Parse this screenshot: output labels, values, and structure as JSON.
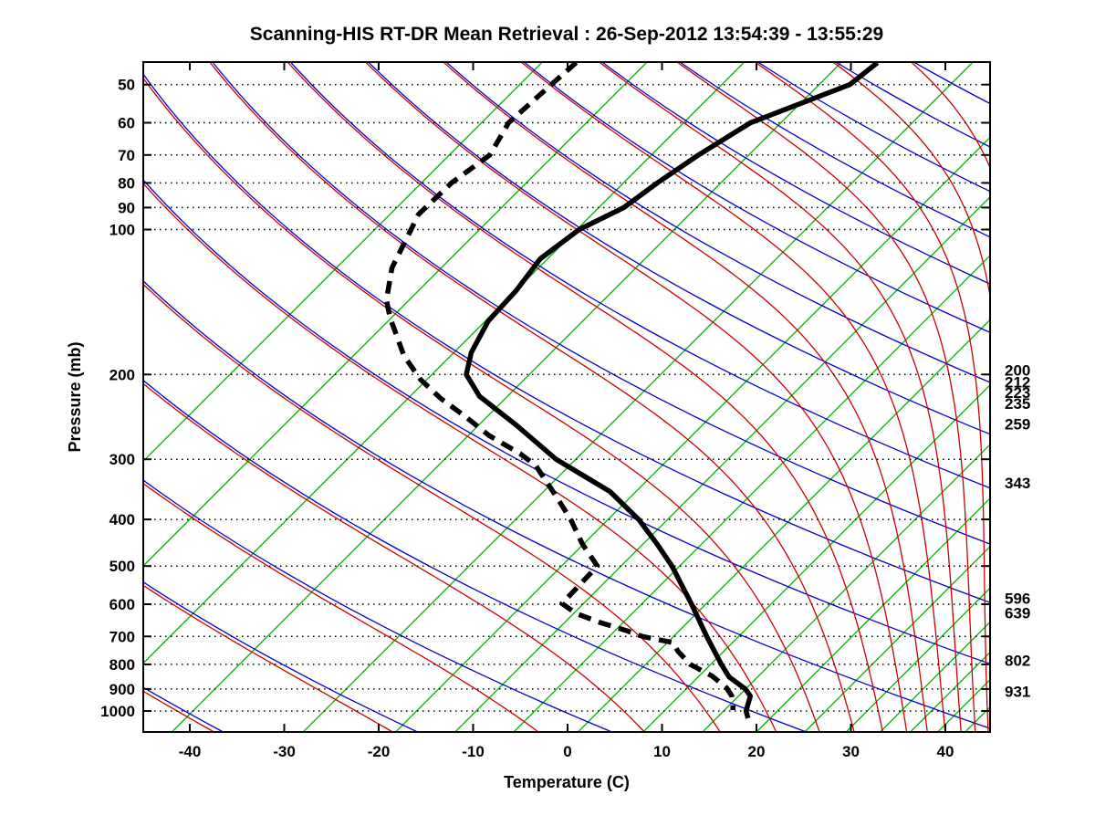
{
  "title": "Scanning-HIS RT-DR Mean Retrieval : 26-Sep-2012 13:54:39 - 13:55:29",
  "axes": {
    "xlabel": "Temperature (C)",
    "ylabel": "Pressure (mb)",
    "x_tick_labels_C": [
      -40,
      -30,
      -20,
      -10,
      0,
      10,
      20,
      30,
      40
    ],
    "x_range_C_at_base": [
      -45,
      45
    ],
    "y_tick_labels_mb": [
      50,
      60,
      70,
      80,
      90,
      100,
      200,
      300,
      400,
      500,
      600,
      700,
      800,
      900,
      1000
    ],
    "pressure_top_mb": 45,
    "pressure_bottom_mb": 1106,
    "scale": "skewed temperature vs log pressure"
  },
  "right_pressure_labels_mb": [
    200,
    212,
    223,
    235,
    259,
    343,
    596,
    639,
    802,
    931
  ],
  "colors": {
    "temperature_curve": "#000000",
    "dewpoint_curve": "#000000",
    "dry_adiabat": "#0000cc",
    "moist_adiabat": "#cc0000",
    "green_isopleth": "#00b400",
    "gridline": "#000000",
    "frame": "#000000",
    "background": "#ffffff"
  },
  "chart_data": {
    "type": "line",
    "title": "Scanning-HIS RT-DR Mean Retrieval : 26-Sep-2012 13:54:39 - 13:55:29",
    "xlabel": "Temperature (C)",
    "ylabel": "Pressure (mb)",
    "x_range_C": [
      -45,
      45
    ],
    "p_range_mb": [
      45,
      1106
    ],
    "grid": "dotted horizontal isobars at labeled pressures",
    "legend_position": "none",
    "series": [
      {
        "name": "temperature",
        "style": "solid bold black",
        "points_p_mb_T_C": [
          [
            45,
            -50.1
          ],
          [
            50,
            -50.3
          ],
          [
            60,
            -56.1
          ],
          [
            70,
            -57.6
          ],
          [
            80,
            -58.5
          ],
          [
            90,
            -59.0
          ],
          [
            100,
            -61.0
          ],
          [
            115,
            -61.5
          ],
          [
            134,
            -60.1
          ],
          [
            155,
            -59.3
          ],
          [
            180,
            -57.2
          ],
          [
            200,
            -55.0
          ],
          [
            222,
            -50.9
          ],
          [
            255,
            -43.4
          ],
          [
            300,
            -35.0
          ],
          [
            350,
            -25.3
          ],
          [
            400,
            -18.8
          ],
          [
            450,
            -13.8
          ],
          [
            500,
            -9.5
          ],
          [
            600,
            -2.7
          ],
          [
            700,
            2.9
          ],
          [
            800,
            7.9
          ],
          [
            850,
            10.3
          ],
          [
            900,
            13.5
          ],
          [
            931,
            14.9
          ],
          [
            970,
            15.7
          ],
          [
            1000,
            16.3
          ],
          [
            1035,
            17.4
          ]
        ]
      },
      {
        "name": "dewpoint",
        "style": "dashed bold black",
        "points_p_mb_T_C": [
          [
            45,
            -82.0
          ],
          [
            50,
            -81.9
          ],
          [
            60,
            -81.7
          ],
          [
            70,
            -79.7
          ],
          [
            80,
            -80.3
          ],
          [
            93,
            -79.9
          ],
          [
            100,
            -78.8
          ],
          [
            120,
            -76.1
          ],
          [
            140,
            -72.7
          ],
          [
            152,
            -70.2
          ],
          [
            183,
            -63.9
          ],
          [
            205,
            -59.2
          ],
          [
            224,
            -54.8
          ],
          [
            245,
            -49.8
          ],
          [
            268,
            -45.0
          ],
          [
            292,
            -39.5
          ],
          [
            309,
            -36.4
          ],
          [
            360,
            -30.2
          ],
          [
            400,
            -26.0
          ],
          [
            450,
            -21.7
          ],
          [
            500,
            -17.4
          ],
          [
            540,
            -17.0
          ],
          [
            598,
            -16.5
          ],
          [
            627,
            -13.8
          ],
          [
            655,
            -10.1
          ],
          [
            681,
            -6.3
          ],
          [
            700,
            -3.9
          ],
          [
            721,
            0.1
          ],
          [
            750,
            1.6
          ],
          [
            800,
            4.6
          ],
          [
            845,
            8.3
          ],
          [
            896,
            11.4
          ],
          [
            930,
            12.9
          ],
          [
            961,
            13.9
          ],
          [
            996,
            14.8
          ]
        ]
      }
    ],
    "background_lines": {
      "dry_adiabats_theta_K": [
        230,
        250,
        270,
        290,
        310,
        330,
        350,
        370,
        390,
        410,
        430,
        450,
        470,
        490,
        510,
        530,
        550,
        570
      ],
      "moist_adiabats": "pseudoadiabat paired with each dry adiabat, started at 45 mb",
      "green_isopleth_base_temperatures_C": [
        -73.6,
        -62.5,
        -52.2,
        -41.9,
        -28.0,
        -18.2,
        -11.9,
        -5.7,
        1.1,
        8.0,
        14.3,
        20.0,
        25.1,
        29.5,
        33.1,
        36.3,
        39.2,
        42.1,
        45.0,
        47.9,
        51.2,
        55.1,
        59.7,
        65.1,
        71.3,
        78.3,
        86.0,
        94.5,
        103.8,
        113.8
      ],
      "isobar_gridlines_mb": [
        50,
        60,
        70,
        80,
        90,
        100,
        200,
        300,
        400,
        500,
        600,
        700,
        800,
        900,
        1000
      ]
    }
  }
}
